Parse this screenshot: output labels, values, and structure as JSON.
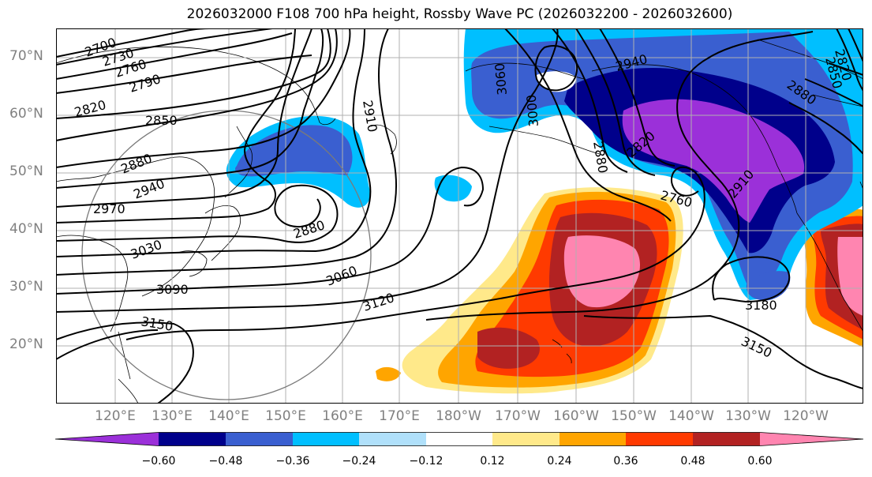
{
  "title": "2026032000 F108 700 hPa height, Rossby Wave PC (2026032200 - 2026032600)",
  "lat_labels": [
    "70°N",
    "60°N",
    "50°N",
    "40°N",
    "30°N",
    "20°N"
  ],
  "lon_labels": [
    "120°E",
    "130°E",
    "140°E",
    "150°E",
    "160°E",
    "170°E",
    "180°W",
    "170°W",
    "160°W",
    "150°W",
    "140°W",
    "130°W",
    "120°W"
  ],
  "colorbar": {
    "ticks": [
      "−0.60",
      "−0.48",
      "−0.36",
      "−0.24",
      "−0.12",
      "0.12",
      "0.24",
      "0.36",
      "0.48",
      "0.60"
    ],
    "colors": [
      "#9b30d9",
      "#00008b",
      "#3a5fd0",
      "#00bfff",
      "#b0e0fa",
      "#ffffff",
      "#ffe98a",
      "#ffa500",
      "#ff3a00",
      "#b22222",
      "#ff85b0",
      "#ff85b0"
    ]
  },
  "contour_labels": {
    "c2700": "2700",
    "c2730": "2730",
    "c2760": "2760",
    "c2790": "2790",
    "c2820": "2820",
    "c2850": "2850",
    "c2880": "2880",
    "c2940": "2940",
    "c2970": "2970",
    "c3030": "3030",
    "c3090": "3090",
    "c3150": "3150",
    "c2880_low": "2880",
    "c3060": "3060",
    "c3120": "3120",
    "c2910_a": "2910",
    "c3060_v": "3060",
    "c3000_v": "3000",
    "c2940_ne": "2940",
    "c2760_low": "2760",
    "c2820_ak": "2820",
    "c2880_ak": "2880",
    "c2910_ak": "2910",
    "c3180": "3180",
    "c3150_se": "3150",
    "c2880_ne": "2880",
    "c2820_ne": "2820",
    "c2850_ne": "2850"
  }
}
